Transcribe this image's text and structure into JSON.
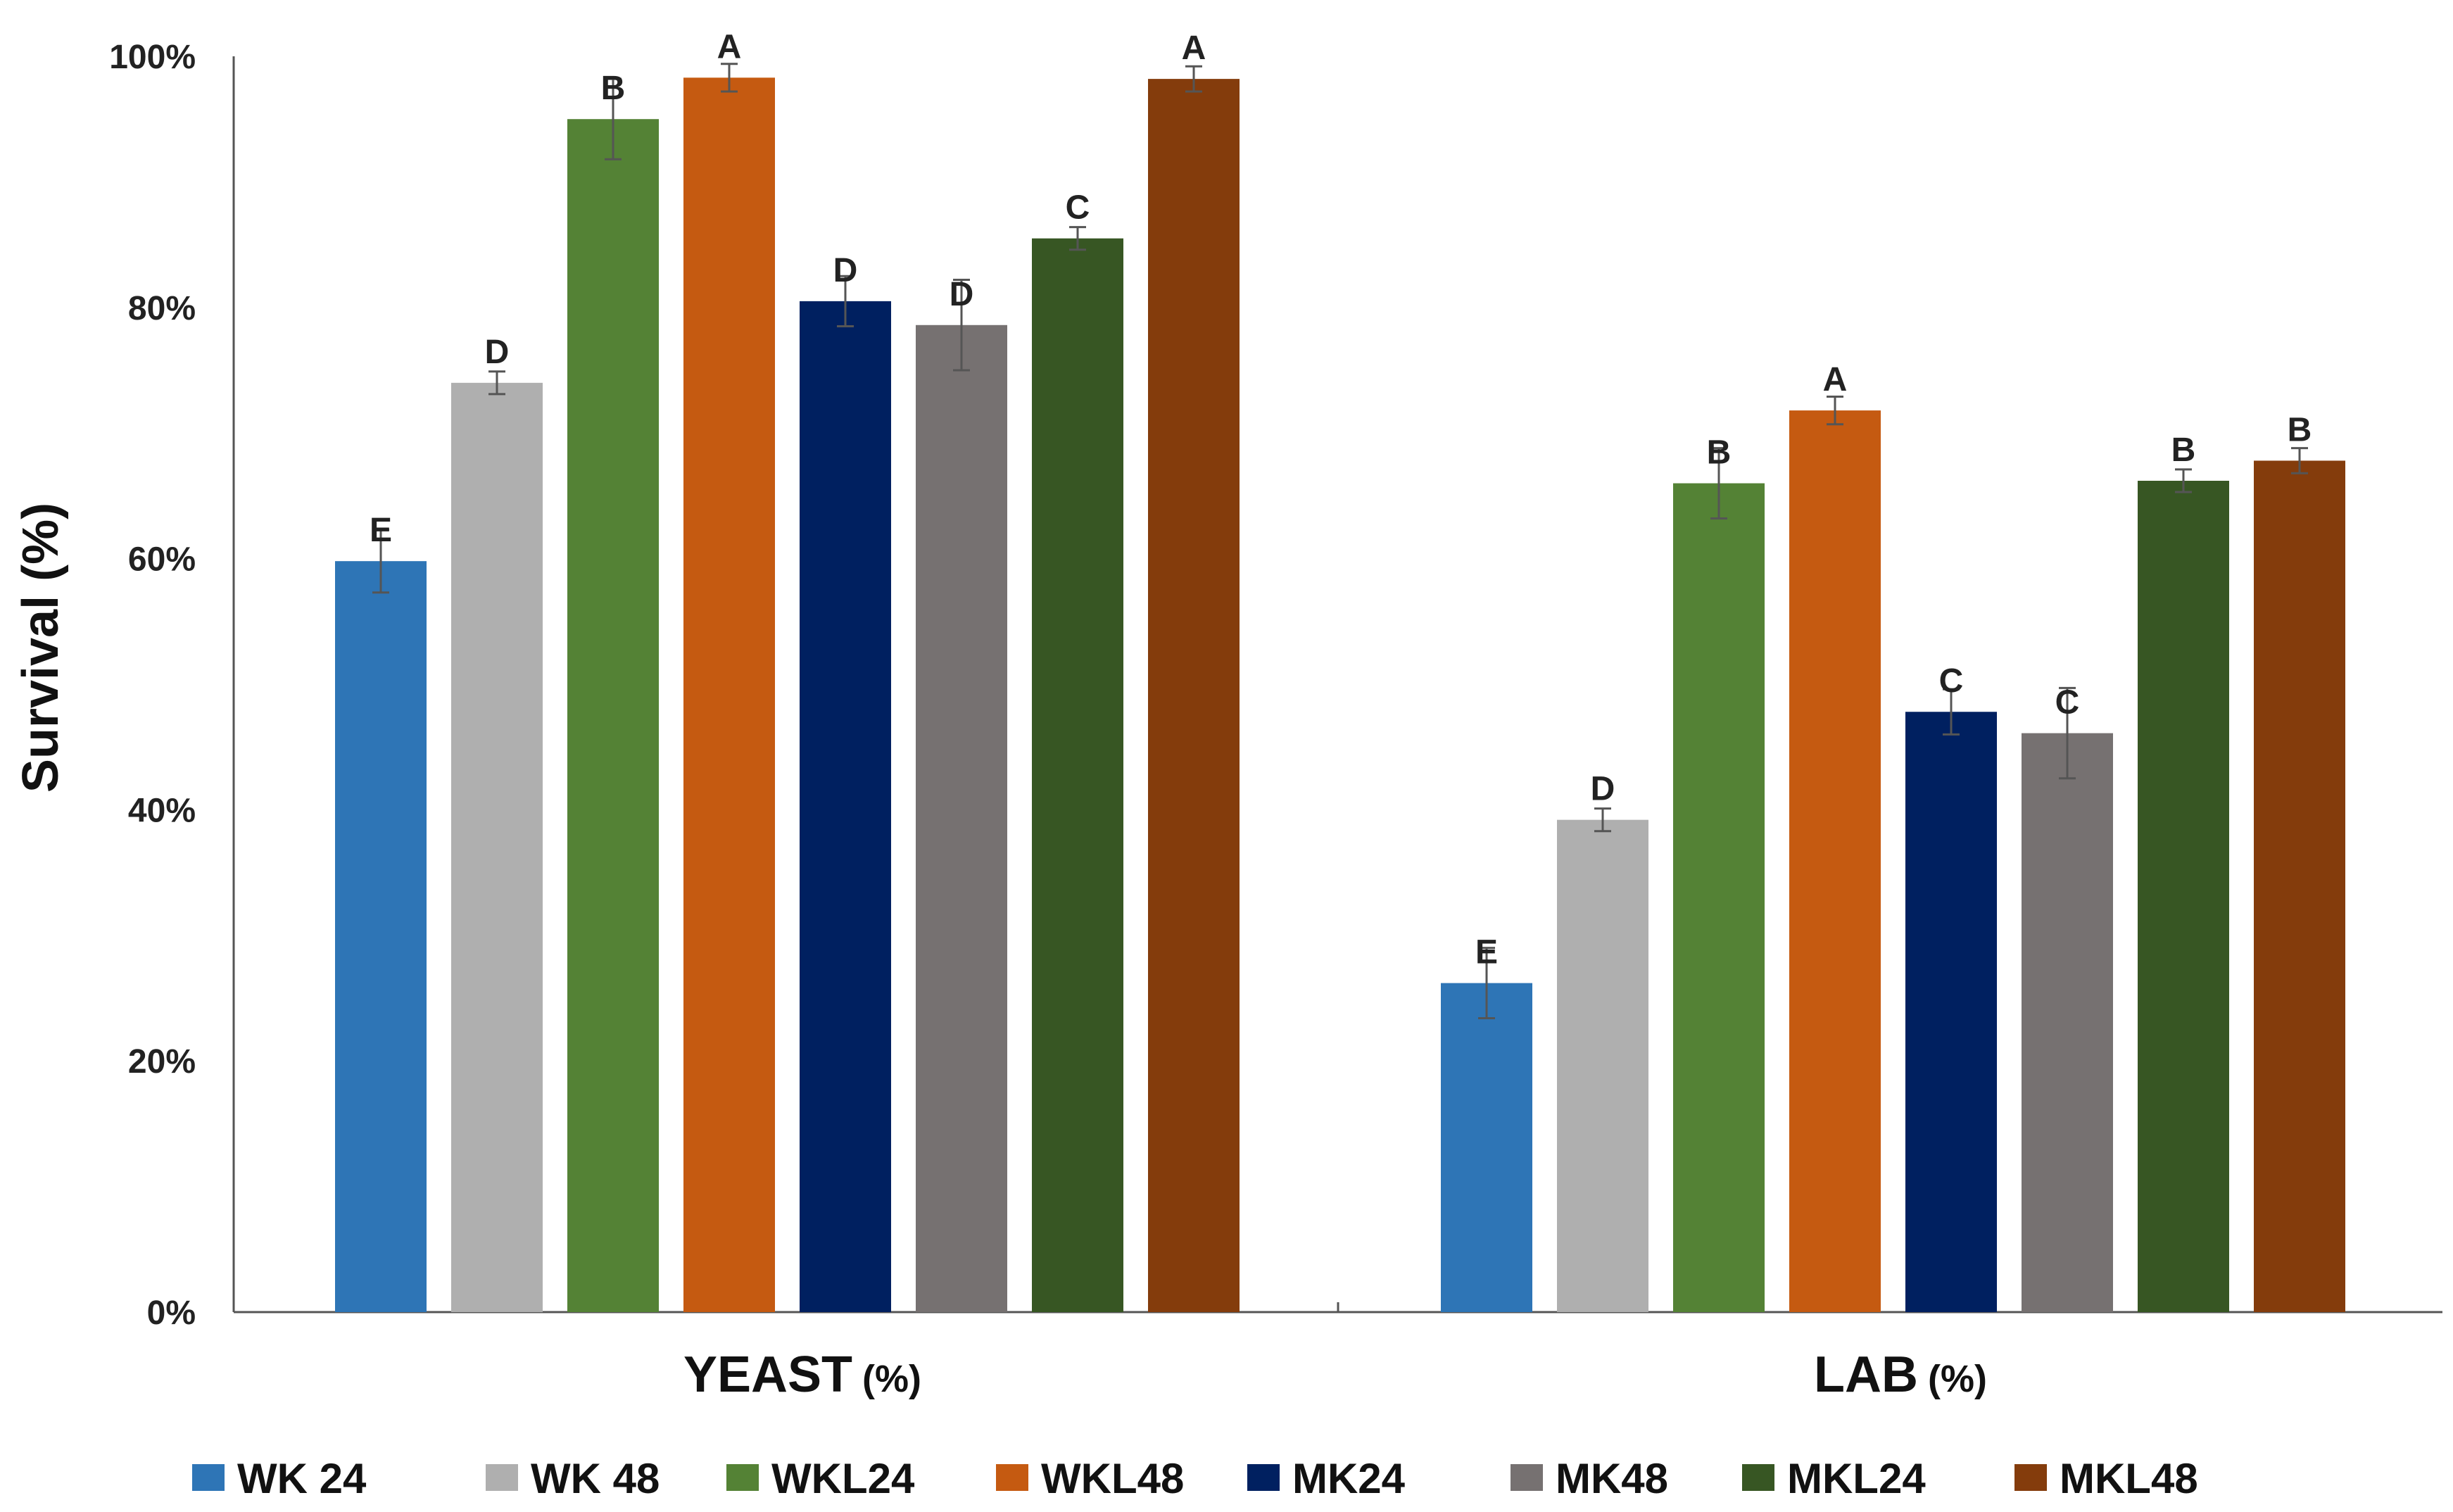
{
  "chart_data": {
    "type": "bar",
    "title": "",
    "xlabel": "",
    "ylabel": "Survival (%)",
    "ylim": [
      0,
      100
    ],
    "yticks": [
      0,
      20,
      40,
      60,
      80,
      100
    ],
    "ytick_labels": [
      "0%",
      "20%",
      "40%",
      "60%",
      "80%",
      "100%"
    ],
    "grid": false,
    "legend_position": "bottom",
    "categories": [
      {
        "main": "YEAST",
        "unit": "(%)"
      },
      {
        "main": "LAB",
        "unit": "(%)"
      }
    ],
    "series": [
      {
        "name": "WK 24",
        "color": "#2E75B6",
        "values": [
          59.8,
          26.2
        ],
        "errors": [
          2.5,
          2.8
        ],
        "letters": [
          "E",
          "E"
        ]
      },
      {
        "name": "WK 48",
        "color": "#AFAFAF",
        "values": [
          74.0,
          39.2
        ],
        "errors": [
          0.9,
          0.9
        ],
        "letters": [
          "D",
          "D"
        ]
      },
      {
        "name": "WKL24",
        "color": "#548235",
        "values": [
          95.0,
          66.0
        ],
        "errors": [
          3.2,
          2.8
        ],
        "letters": [
          "B",
          "B"
        ]
      },
      {
        "name": "WKL48",
        "color": "#C55A11",
        "values": [
          98.3,
          71.8
        ],
        "errors": [
          1.1,
          1.1
        ],
        "letters": [
          "A",
          "A"
        ]
      },
      {
        "name": "MK24",
        "color": "#002060",
        "values": [
          80.5,
          47.8
        ],
        "errors": [
          2.0,
          1.8
        ],
        "letters": [
          "D",
          "C"
        ]
      },
      {
        "name": "MK48",
        "color": "#767171",
        "values": [
          78.6,
          46.1
        ],
        "errors": [
          3.6,
          3.6
        ],
        "letters": [
          "D",
          "C"
        ]
      },
      {
        "name": "MKL24",
        "color": "#375623",
        "values": [
          85.5,
          66.2
        ],
        "errors": [
          0.9,
          0.9
        ],
        "letters": [
          "C",
          "B"
        ]
      },
      {
        "name": "MKL48",
        "color": "#843C0C",
        "values": [
          98.2,
          67.8
        ],
        "errors": [
          1.0,
          1.0
        ],
        "letters": [
          "A",
          "B"
        ]
      }
    ]
  }
}
